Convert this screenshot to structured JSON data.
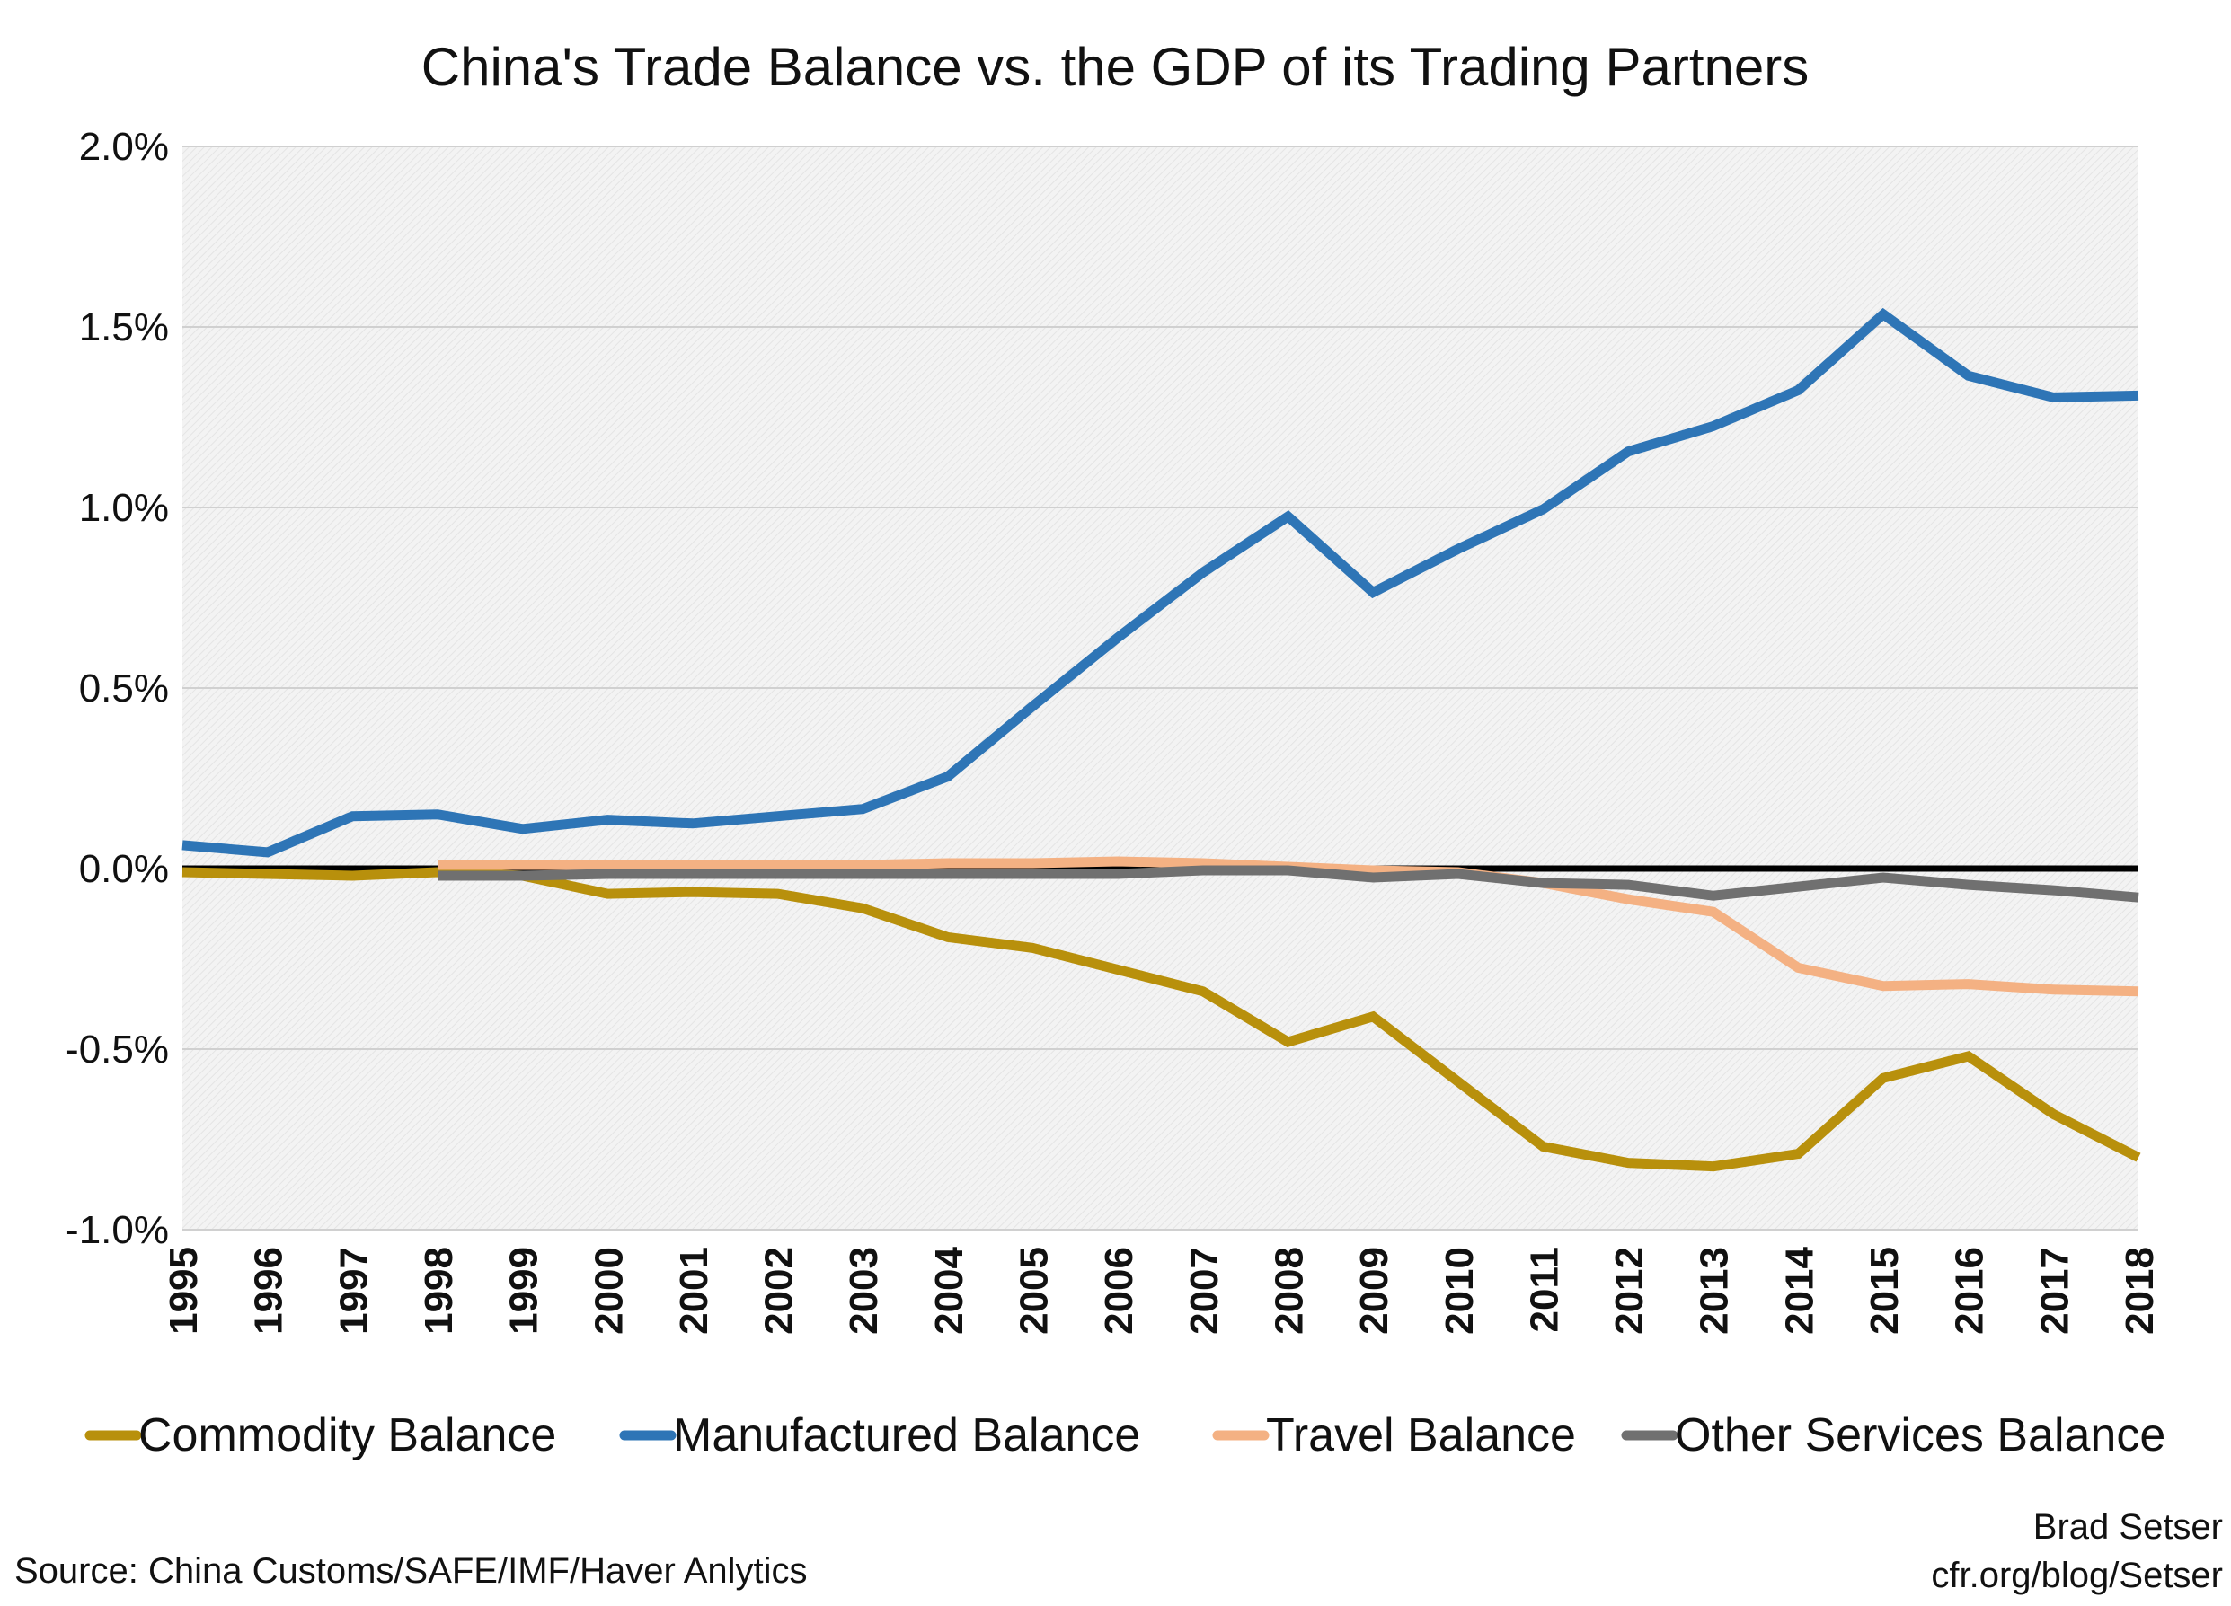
{
  "chart_data": {
    "type": "line",
    "title": "China's Trade Balance vs. the GDP of its Trading Partners",
    "xlabel": "",
    "ylabel": "",
    "x": [
      "1995",
      "1996",
      "1997",
      "1998",
      "1999",
      "2000",
      "2001",
      "2002",
      "2003",
      "2004",
      "2005",
      "2006",
      "2007",
      "2008",
      "2009",
      "2010",
      "2011",
      "2012",
      "2013",
      "2014",
      "2015",
      "2016",
      "2017",
      "2018"
    ],
    "ylim": [
      -1.0,
      2.0
    ],
    "y_ticks": [
      "2.0%",
      "1.5%",
      "1.0%",
      "0.5%",
      "0.0%",
      "-0.5%",
      "-1.0%"
    ],
    "grid": true,
    "legend_position": "bottom",
    "series": [
      {
        "name": "Commodity Balance",
        "color": "#B8900C",
        "values": [
          -0.01,
          -0.015,
          -0.02,
          -0.01,
          -0.02,
          -0.07,
          -0.065,
          -0.07,
          -0.11,
          -0.19,
          -0.22,
          -0.28,
          -0.34,
          -0.48,
          -0.41,
          -0.59,
          -0.77,
          -0.815,
          -0.825,
          -0.79,
          -0.58,
          -0.52,
          -0.68,
          -0.8
        ]
      },
      {
        "name": "Manufactured Balance",
        "color": "#2E75B6",
        "values": [
          0.065,
          0.045,
          0.145,
          0.15,
          0.11,
          0.135,
          0.125,
          0.145,
          0.165,
          0.255,
          0.45,
          0.64,
          0.82,
          0.975,
          0.765,
          0.885,
          0.995,
          1.155,
          1.225,
          1.325,
          1.535,
          1.365,
          1.305,
          1.31
        ]
      },
      {
        "name": "Travel Balance",
        "color": "#F4B183",
        "values": [
          null,
          null,
          null,
          0.01,
          0.01,
          0.01,
          0.01,
          0.01,
          0.01,
          0.015,
          0.015,
          0.02,
          0.015,
          0.005,
          -0.005,
          -0.01,
          -0.04,
          -0.085,
          -0.12,
          -0.275,
          -0.325,
          -0.32,
          -0.335,
          -0.34
        ]
      },
      {
        "name": "Other Services Balance",
        "color": "#707070",
        "values": [
          null,
          null,
          null,
          -0.02,
          -0.02,
          -0.015,
          -0.015,
          -0.015,
          -0.015,
          -0.015,
          -0.015,
          -0.015,
          -0.005,
          -0.005,
          -0.025,
          -0.015,
          -0.04,
          -0.045,
          -0.075,
          -0.05,
          -0.025,
          -0.045,
          -0.06,
          -0.08
        ]
      }
    ],
    "annotations": {
      "author": "Brad Setser",
      "url": "cfr.org/blog/Setser",
      "source": "Source: China Customs/SAFE/IMF/Haver Anlytics"
    }
  },
  "colors": {
    "zero_line": "#000000",
    "plot_background": "#f2f2f2",
    "gridline": "#d0d0d0"
  }
}
